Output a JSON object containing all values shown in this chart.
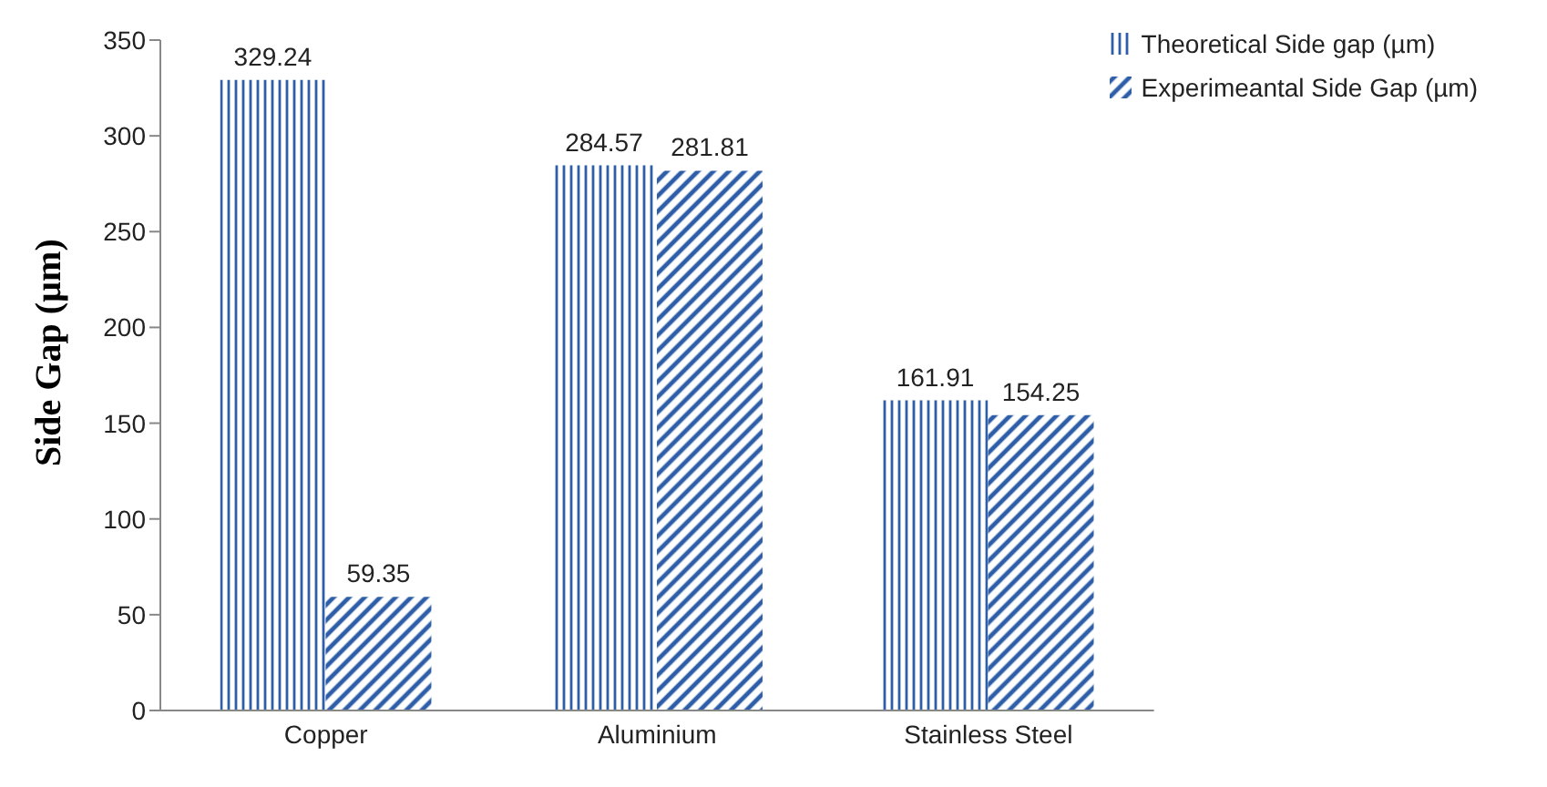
{
  "chart_data": {
    "type": "bar",
    "ylabel": "Side Gap (µm)",
    "categories": [
      "Copper",
      "Aluminium",
      "Stainless Steel"
    ],
    "series": [
      {
        "name": "Theoretical Side gap (µm)",
        "color": "#2e5ea8",
        "values": [
          329.24,
          284.57,
          161.91
        ]
      },
      {
        "name": "Experimeantal Side Gap (µm)",
        "color": "#2e5ea8",
        "values": [
          59.35,
          281.81,
          154.25
        ]
      }
    ],
    "ylim": [
      0,
      350
    ],
    "yticks": [
      0,
      50,
      100,
      150,
      200,
      250,
      300,
      350
    ],
    "data_labels": true,
    "legend": "top right",
    "grid": false
  }
}
